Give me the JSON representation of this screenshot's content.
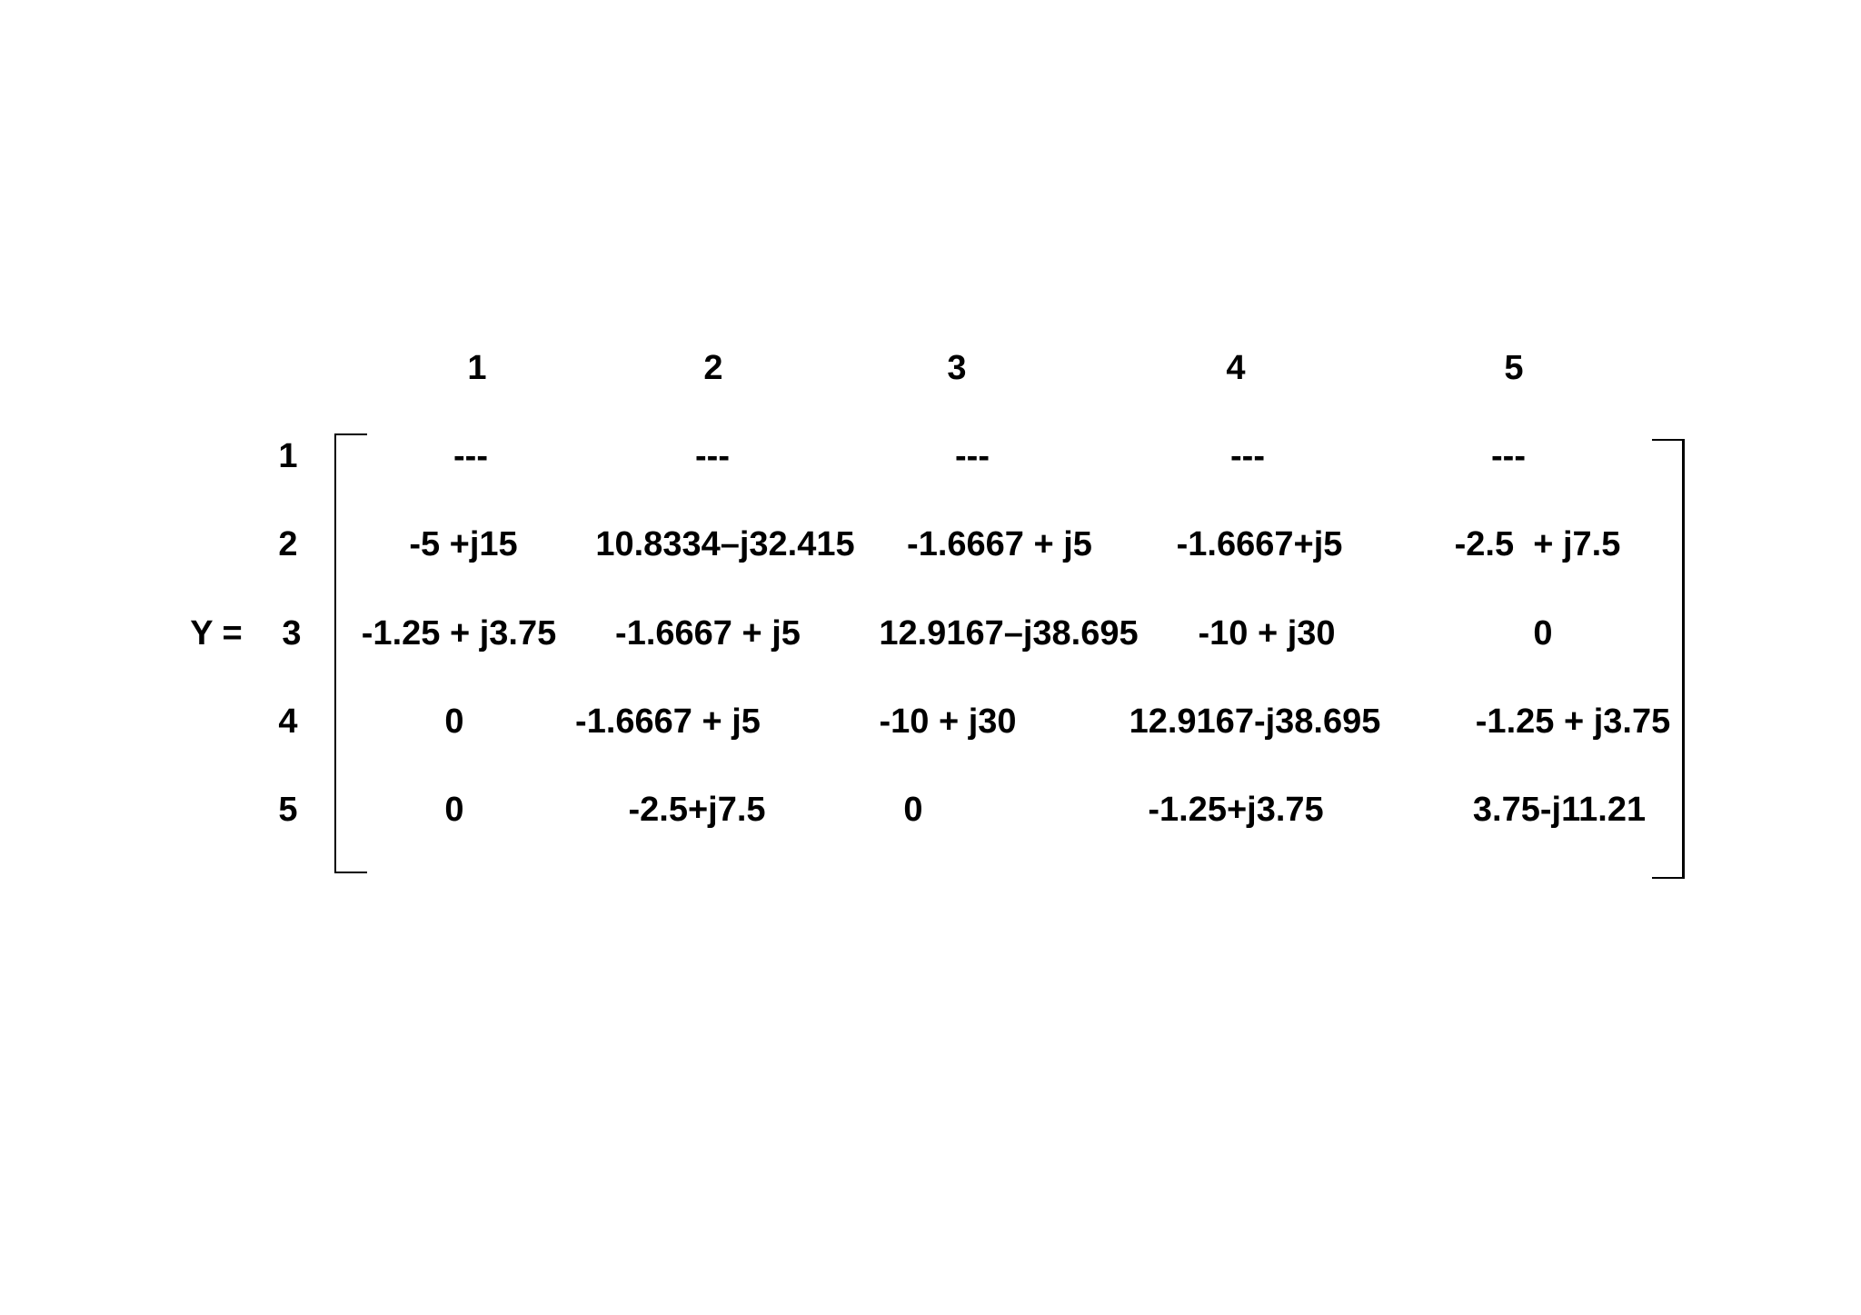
{
  "matrix": {
    "symbol_label": "Y =",
    "column_headers": [
      "1",
      "2",
      "3",
      "4",
      "5"
    ],
    "row_headers": [
      "1",
      "2",
      "3",
      "4",
      "5"
    ],
    "rows": [
      [
        "---",
        "---",
        "---",
        "---",
        "---"
      ],
      [
        "-5 +j15",
        "10.8334–j32.415",
        "-1.6667 + j5",
        "-1.6667+j5",
        "-2.5  + j7.5"
      ],
      [
        "-1.25 + j3.75",
        "-1.6667 + j5",
        "12.9167–j38.695",
        "-10 + j30",
        "0"
      ],
      [
        "0",
        "-1.6667 + j5",
        "-10 + j30",
        "12.9167-j38.695",
        "-1.25 + j3.75"
      ],
      [
        "0",
        "-2.5+j7.5",
        "0",
        "-1.25+j3.75",
        "3.75-j11.21"
      ]
    ]
  }
}
